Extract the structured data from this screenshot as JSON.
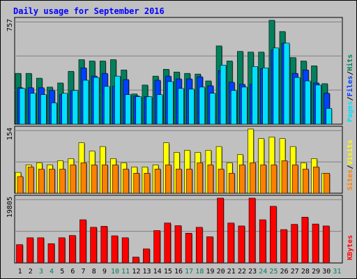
{
  "colors": {
    "background": "#c0c0c0",
    "plot_bg": "#c0c0c0",
    "grid": "#808080",
    "hits": "#00805c",
    "files": "#0040ff",
    "pages": "#00e0ff",
    "visits": "#ffff00",
    "sites": "#ff8000",
    "kbytes": "#ff0000",
    "title": "#0000ff",
    "weekend_day": "#00805c"
  },
  "chart_data": {
    "type": "bar",
    "title": "Daily usage for September 2016",
    "days": [
      "1",
      "2",
      "3",
      "4",
      "5",
      "6",
      "7",
      "8",
      "9",
      "10",
      "11",
      "12",
      "13",
      "14",
      "15",
      "16",
      "17",
      "18",
      "19",
      "20",
      "21",
      "22",
      "23",
      "24",
      "25",
      "26",
      "27",
      "28",
      "29",
      "30",
      "31"
    ],
    "weekend_days": [
      "3",
      "4",
      "10",
      "11",
      "17",
      "18",
      "24",
      "25",
      "31"
    ],
    "panels": [
      {
        "name": "hits-files-pages",
        "max_label": "757",
        "ymax": 757,
        "legend": [
          "Pages",
          "Files",
          "Hits"
        ],
        "series": [
          {
            "name": "Hits",
            "values": [
              370,
              370,
              335,
              270,
              300,
              385,
              470,
              460,
              460,
              470,
              395,
              220,
              285,
              350,
              400,
              380,
              370,
              365,
              315,
              570,
              460,
              530,
              525,
              525,
              760,
              675,
              485,
              460,
              425,
              295,
              0
            ]
          },
          {
            "name": "Files",
            "values": [
              265,
              265,
              265,
              245,
              215,
              245,
              410,
              350,
              370,
              275,
              325,
              205,
              200,
              320,
              350,
              330,
              330,
              345,
              280,
              390,
              305,
              290,
              290,
              405,
              540,
              590,
              370,
              395,
              300,
              225,
              0
            ]
          },
          {
            "name": "Pages",
            "values": [
              260,
              225,
              215,
              155,
              225,
              245,
              320,
              340,
              275,
              350,
              215,
              200,
              200,
              215,
              310,
              260,
              255,
              270,
              225,
              430,
              245,
              270,
              420,
              410,
              555,
              590,
              340,
              315,
              285,
              115,
              0
            ]
          }
        ]
      },
      {
        "name": "visits-sites",
        "max_label": "154",
        "ymax": 154,
        "legend": [
          "Sites",
          "Visits"
        ],
        "series": [
          {
            "name": "Visits",
            "values": [
              50,
              68,
              73,
              68,
              78,
              83,
              121,
              101,
              112,
              83,
              73,
              63,
              63,
              68,
              121,
              98,
              103,
              98,
              103,
              112,
              73,
              93,
              154,
              131,
              135,
              131,
              112,
              73,
              83,
              48,
              0
            ]
          },
          {
            "name": "Sites",
            "values": [
              40,
              63,
              58,
              58,
              58,
              68,
              73,
              68,
              68,
              68,
              58,
              48,
              48,
              58,
              68,
              58,
              58,
              73,
              68,
              58,
              48,
              68,
              73,
              68,
              68,
              78,
              68,
              58,
              63,
              48,
              0
            ]
          }
        ]
      },
      {
        "name": "kbytes",
        "max_label": "19805",
        "ymax": 19805,
        "legend": [
          "KBytes"
        ],
        "series": [
          {
            "name": "KBytes",
            "values": [
              5600,
              7700,
              7700,
              5900,
              7700,
              8400,
              13200,
              10900,
              11200,
              8300,
              7700,
              1800,
              4300,
              9900,
              12200,
              11400,
              9100,
              10900,
              8000,
              20000,
              12200,
              11300,
              20000,
              13200,
              17300,
              10200,
              11800,
              14000,
              11900,
              11300,
              0
            ]
          }
        ]
      }
    ]
  }
}
